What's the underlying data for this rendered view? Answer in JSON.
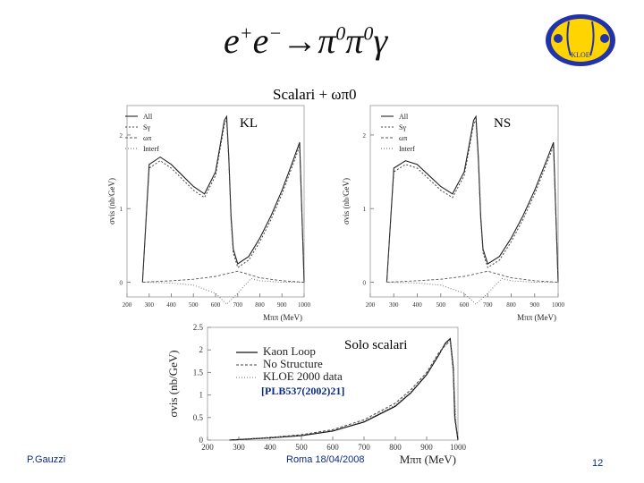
{
  "slide": {
    "title": "e+e−→π0π0γ",
    "title_parts": {
      "e1": "e",
      "plus": "+",
      "e2": "e",
      "minus": "−",
      "arrow": "→",
      "pi1": "π",
      "zero1": "0",
      "pi2": "π",
      "zero2": "0",
      "gamma": "γ"
    },
    "subtitle": "Scalari + ωπ0",
    "label_kl": "KL",
    "label_ns": "NS",
    "label_solo": "Solo scalari",
    "reference": "[PLB537(2002)21]",
    "footer_left": "P.Gauzzi",
    "footer_center": "Roma 18/04/2008",
    "page_number": "12",
    "logo_text": "KLOE"
  },
  "chart_data": [
    {
      "id": "kl",
      "type": "line",
      "title": "KL",
      "xlabel": "Mππ (MeV)",
      "ylabel": "σvis (nb/GeV)",
      "xlim": [
        200,
        1000
      ],
      "ylim": [
        -0.2,
        2.4
      ],
      "xticks": [
        200,
        300,
        400,
        500,
        600,
        700,
        800,
        900,
        1000
      ],
      "yticks": [
        0,
        1,
        2
      ],
      "legend": [
        "All",
        "Sγ",
        "ωπ",
        "Interf"
      ],
      "series": [
        {
          "name": "All",
          "x": [
            270,
            300,
            350,
            400,
            450,
            500,
            550,
            600,
            620,
            640,
            650,
            660,
            670,
            680,
            700,
            750,
            800,
            850,
            900,
            950,
            980,
            1000
          ],
          "y": [
            0.0,
            1.6,
            1.7,
            1.6,
            1.45,
            1.3,
            1.2,
            1.5,
            1.85,
            2.2,
            2.25,
            1.7,
            0.9,
            0.45,
            0.25,
            0.35,
            0.6,
            0.9,
            1.25,
            1.65,
            1.9,
            0.0
          ]
        },
        {
          "name": "Sγ",
          "x": [
            270,
            300,
            350,
            400,
            450,
            500,
            550,
            600,
            620,
            640,
            650,
            660,
            670,
            680,
            700,
            750,
            800,
            850,
            900,
            950,
            980,
            1000
          ],
          "y": [
            0.0,
            1.55,
            1.65,
            1.55,
            1.4,
            1.25,
            1.15,
            1.45,
            1.8,
            2.15,
            2.2,
            1.65,
            0.85,
            0.4,
            0.2,
            0.3,
            0.55,
            0.85,
            1.2,
            1.6,
            1.85,
            0.0
          ]
        },
        {
          "name": "ωπ",
          "x": [
            270,
            400,
            500,
            600,
            700,
            800,
            900,
            1000
          ],
          "y": [
            0.0,
            0.02,
            0.04,
            0.08,
            0.15,
            0.06,
            0.02,
            0.0
          ]
        },
        {
          "name": "Interf",
          "x": [
            270,
            400,
            500,
            600,
            650,
            700,
            760,
            800,
            900,
            1000
          ],
          "y": [
            0.0,
            -0.01,
            -0.04,
            -0.15,
            -0.3,
            -0.15,
            0.05,
            0.02,
            0.0,
            0.0
          ]
        }
      ]
    },
    {
      "id": "ns",
      "type": "line",
      "title": "NS",
      "xlabel": "Mππ (MeV)",
      "ylabel": "σvis (nb/GeV)",
      "xlim": [
        200,
        1000
      ],
      "ylim": [
        -0.2,
        2.4
      ],
      "xticks": [
        200,
        300,
        400,
        500,
        600,
        700,
        800,
        900,
        1000
      ],
      "yticks": [
        0,
        1,
        2
      ],
      "legend": [
        "All",
        "Sγ",
        "ωπ",
        "Interf"
      ],
      "series": [
        {
          "name": "All",
          "x": [
            270,
            300,
            350,
            400,
            450,
            500,
            550,
            600,
            620,
            640,
            650,
            660,
            670,
            680,
            700,
            750,
            800,
            850,
            900,
            950,
            980,
            1000
          ],
          "y": [
            0.0,
            1.55,
            1.65,
            1.6,
            1.45,
            1.3,
            1.2,
            1.5,
            1.85,
            2.2,
            2.25,
            1.7,
            0.9,
            0.45,
            0.25,
            0.35,
            0.6,
            0.9,
            1.25,
            1.65,
            1.9,
            0.0
          ]
        },
        {
          "name": "Sγ",
          "x": [
            270,
            300,
            350,
            400,
            450,
            500,
            550,
            600,
            620,
            640,
            650,
            660,
            670,
            680,
            700,
            750,
            800,
            850,
            900,
            950,
            980,
            1000
          ],
          "y": [
            0.0,
            1.5,
            1.6,
            1.55,
            1.4,
            1.25,
            1.15,
            1.45,
            1.8,
            2.15,
            2.2,
            1.65,
            0.85,
            0.4,
            0.2,
            0.3,
            0.55,
            0.85,
            1.2,
            1.6,
            1.85,
            0.0
          ]
        },
        {
          "name": "ωπ",
          "x": [
            270,
            400,
            500,
            600,
            700,
            800,
            900,
            1000
          ],
          "y": [
            0.0,
            0.02,
            0.04,
            0.08,
            0.15,
            0.06,
            0.02,
            0.0
          ]
        },
        {
          "name": "Interf",
          "x": [
            270,
            400,
            500,
            600,
            650,
            700,
            760,
            800,
            900,
            1000
          ],
          "y": [
            0.0,
            -0.01,
            -0.04,
            -0.15,
            -0.3,
            -0.15,
            0.05,
            0.02,
            0.0,
            0.0
          ]
        }
      ]
    },
    {
      "id": "solo",
      "type": "line",
      "title": "Solo scalari",
      "xlabel": "Mππ (MeV)",
      "ylabel": "σvis (nb/GeV)",
      "xlim": [
        200,
        1000
      ],
      "ylim": [
        0,
        2.5
      ],
      "xticks": [
        200,
        300,
        400,
        500,
        600,
        700,
        800,
        900,
        1000
      ],
      "yticks": [
        0,
        0.5,
        1,
        1.5,
        2,
        2.5
      ],
      "legend": [
        "Kaon Loop",
        "No Structure",
        "KLOE 2000 data"
      ],
      "series": [
        {
          "name": "Kaon Loop",
          "x": [
            270,
            400,
            500,
            600,
            700,
            800,
            850,
            900,
            940,
            960,
            975,
            985,
            990,
            1000
          ],
          "y": [
            0.0,
            0.05,
            0.1,
            0.2,
            0.4,
            0.75,
            1.05,
            1.45,
            1.9,
            2.15,
            2.25,
            1.6,
            0.5,
            0.0
          ]
        },
        {
          "name": "No Structure",
          "x": [
            270,
            400,
            500,
            600,
            700,
            800,
            850,
            900,
            940,
            960,
            975,
            985,
            990,
            1000
          ],
          "y": [
            0.0,
            0.06,
            0.12,
            0.23,
            0.45,
            0.82,
            1.12,
            1.5,
            1.95,
            2.1,
            2.2,
            1.5,
            0.45,
            0.0
          ]
        },
        {
          "name": "KLOE 2000 data",
          "x": [
            300,
            400,
            500,
            600,
            700,
            800,
            850,
            900,
            940,
            960,
            975,
            985,
            995
          ],
          "y": [
            0.02,
            0.05,
            0.11,
            0.21,
            0.42,
            0.78,
            1.08,
            1.47,
            1.92,
            2.12,
            2.22,
            1.55,
            0.3
          ]
        }
      ]
    }
  ]
}
